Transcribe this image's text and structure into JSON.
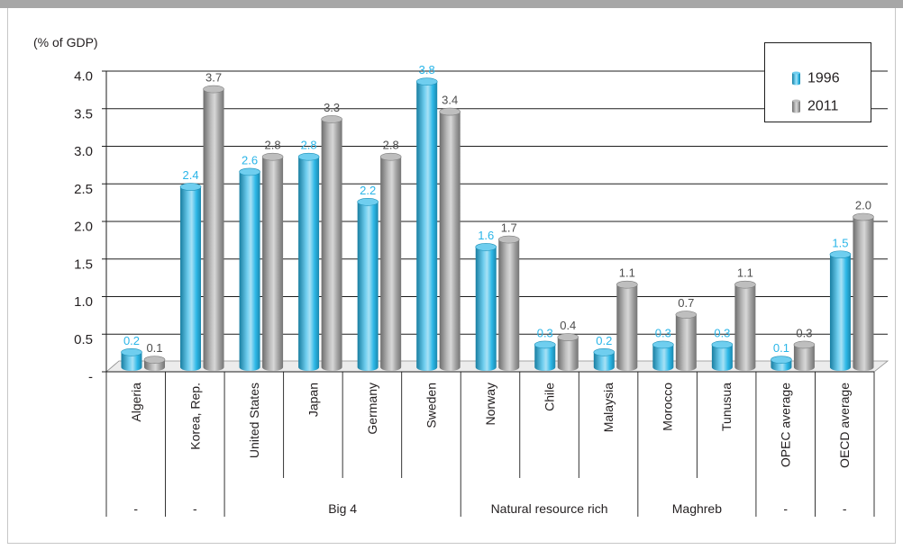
{
  "chart_data": {
    "type": "bar",
    "title": "",
    "xlabel": "",
    "ylabel": "(% of GDP)",
    "ylim": [
      0,
      4.0
    ],
    "y_ticks": [
      0,
      0.5,
      1.0,
      1.5,
      2.0,
      2.5,
      3.0,
      3.5,
      4.0
    ],
    "y_tick_labels": [
      "-",
      "0.5",
      "1.0",
      "1.5",
      "2.0",
      "2.5",
      "3.0",
      "3.5",
      "4.0"
    ],
    "categories": [
      "Algeria",
      "Korea, Rep.",
      "United States",
      "Japan",
      "Germany",
      "Sweden",
      "Norway",
      "Chile",
      "Malaysia",
      "Morocco",
      "Tunusua",
      "OPEC average",
      "OECD average"
    ],
    "category_groups": [
      {
        "label": "-",
        "count": 1
      },
      {
        "label": "-",
        "count": 1
      },
      {
        "label": "Big 4",
        "count": 4
      },
      {
        "label": "Natural resource rich",
        "count": 3
      },
      {
        "label": "Maghreb",
        "count": 2
      },
      {
        "label": "-",
        "count": 1
      },
      {
        "label": "-",
        "count": 1
      }
    ],
    "series": [
      {
        "name": "1996",
        "color": "#22b4e6",
        "label_color": "#2ab5e8",
        "values": [
          0.2,
          2.4,
          2.6,
          2.8,
          2.2,
          3.8,
          1.6,
          0.3,
          0.2,
          0.3,
          0.3,
          0.1,
          1.5
        ]
      },
      {
        "name": "2011",
        "color": "#9b9b9b",
        "label_color": "#4d4d4d",
        "values": [
          0.1,
          3.7,
          2.8,
          3.3,
          2.8,
          3.4,
          1.7,
          0.4,
          1.1,
          0.7,
          1.1,
          0.3,
          2.0
        ]
      }
    ],
    "data_labels": true,
    "grid": true,
    "style": "3d-cylinder",
    "legend": {
      "position": "top-right",
      "boxed": true
    }
  }
}
